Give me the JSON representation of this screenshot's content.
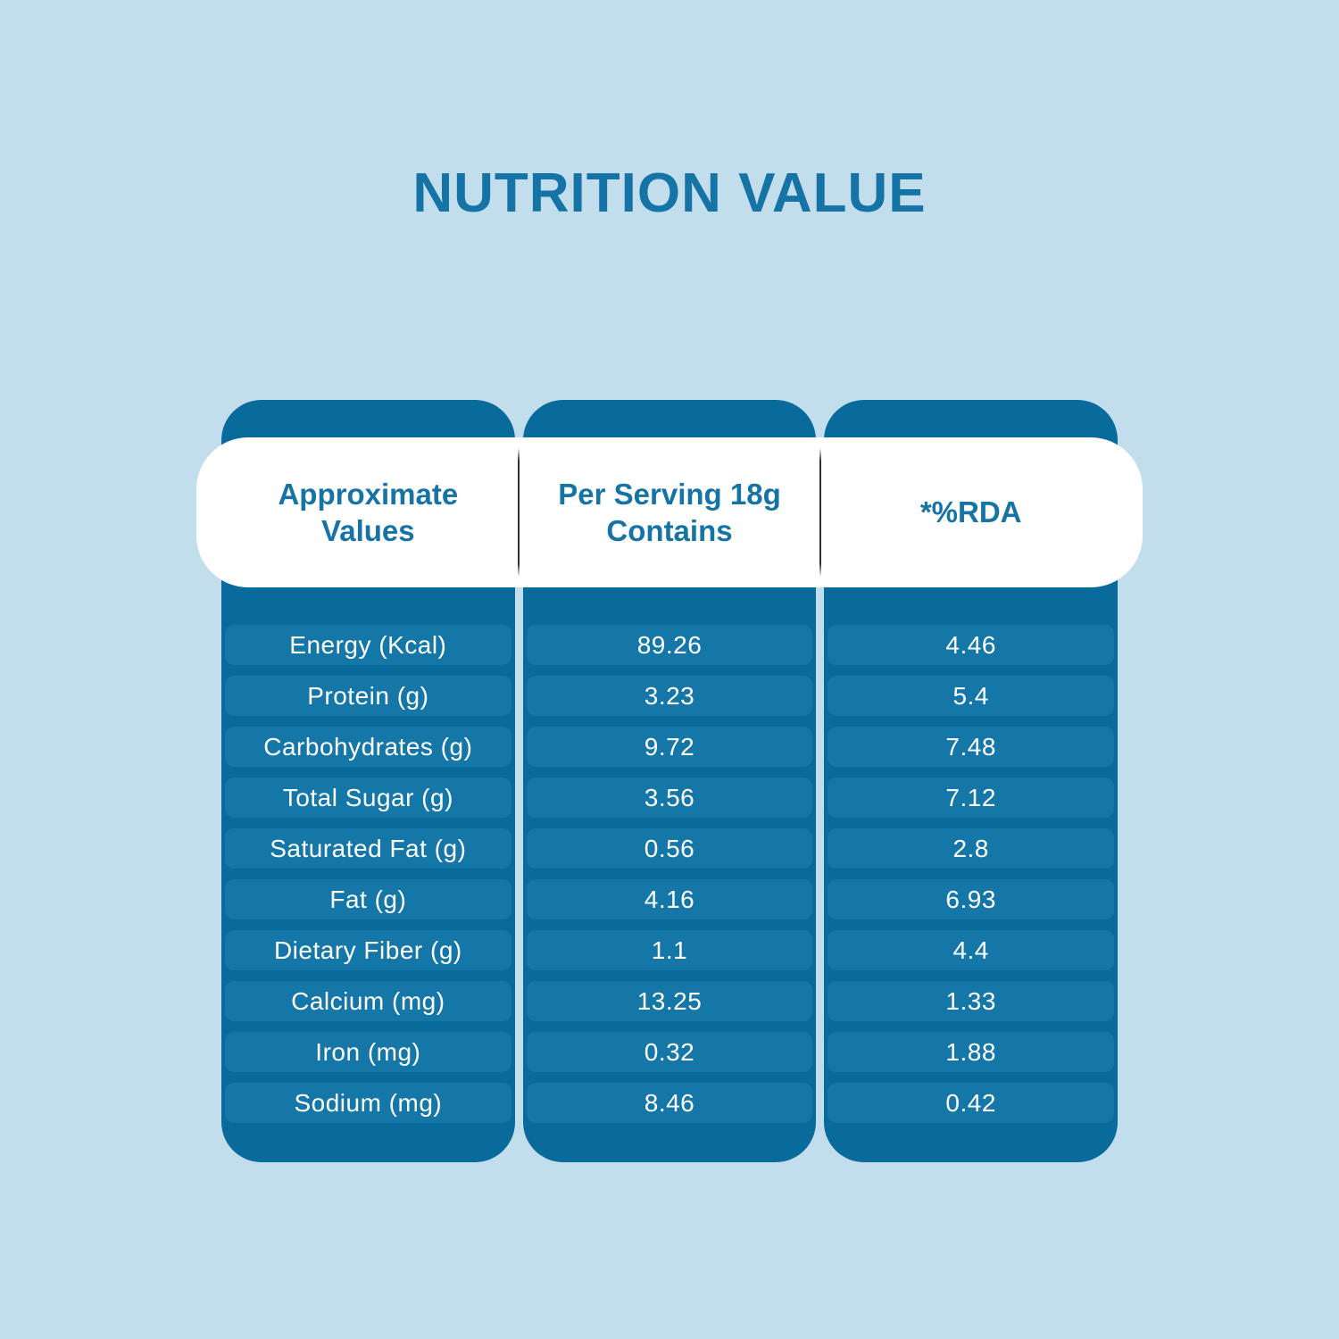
{
  "title": "NUTRITION VALUE",
  "colors": {
    "page_bg": "#C2DEEC",
    "column_panel": "#086B9C",
    "row_pill": "#1577A8",
    "blue_text": "#1573A6",
    "header_band_bg": "#FFFFFF",
    "cell_text": "#FFFFFF",
    "divider": "#2F2F2F"
  },
  "table": {
    "headers": [
      {
        "label": "Approximate Values",
        "display": "Approximate\nValues"
      },
      {
        "label": "Per Serving 18g Contains",
        "display": "Per Serving 18g\nContains"
      },
      {
        "label": "*%RDA",
        "display": "*%RDA"
      }
    ],
    "rows": [
      {
        "label": "Energy (Kcal)",
        "per_serving": "89.26",
        "rda": "4.46"
      },
      {
        "label": "Protein (g)",
        "per_serving": "3.23",
        "rda": "5.4"
      },
      {
        "label": "Carbohydrates (g)",
        "per_serving": "9.72",
        "rda": "7.48"
      },
      {
        "label": "Total Sugar (g)",
        "per_serving": "3.56",
        "rda": "7.12"
      },
      {
        "label": "Saturated Fat (g)",
        "per_serving": "0.56",
        "rda": "2.8"
      },
      {
        "label": "Fat (g)",
        "per_serving": "4.16",
        "rda": "6.93"
      },
      {
        "label": "Dietary Fiber (g)",
        "per_serving": "1.1",
        "rda": "4.4"
      },
      {
        "label": "Calcium (mg)",
        "per_serving": "13.25",
        "rda": "1.33"
      },
      {
        "label": "Iron (mg)",
        "per_serving": "0.32",
        "rda": "1.88"
      },
      {
        "label": "Sodium (mg)",
        "per_serving": "8.46",
        "rda": "0.42"
      }
    ]
  },
  "chart_data": {
    "type": "table",
    "title": "NUTRITION VALUE",
    "columns": [
      "Approximate Values",
      "Per Serving 18g Contains",
      "*%RDA"
    ],
    "rows": [
      [
        "Energy (Kcal)",
        89.26,
        4.46
      ],
      [
        "Protein (g)",
        3.23,
        5.4
      ],
      [
        "Carbohydrates (g)",
        9.72,
        7.48
      ],
      [
        "Total Sugar (g)",
        3.56,
        7.12
      ],
      [
        "Saturated Fat (g)",
        0.56,
        2.8
      ],
      [
        "Fat (g)",
        4.16,
        6.93
      ],
      [
        "Dietary Fiber (g)",
        1.1,
        4.4
      ],
      [
        "Calcium (mg)",
        13.25,
        1.33
      ],
      [
        "Iron (mg)",
        0.32,
        1.88
      ],
      [
        "Sodium (mg)",
        8.46,
        0.42
      ]
    ]
  }
}
